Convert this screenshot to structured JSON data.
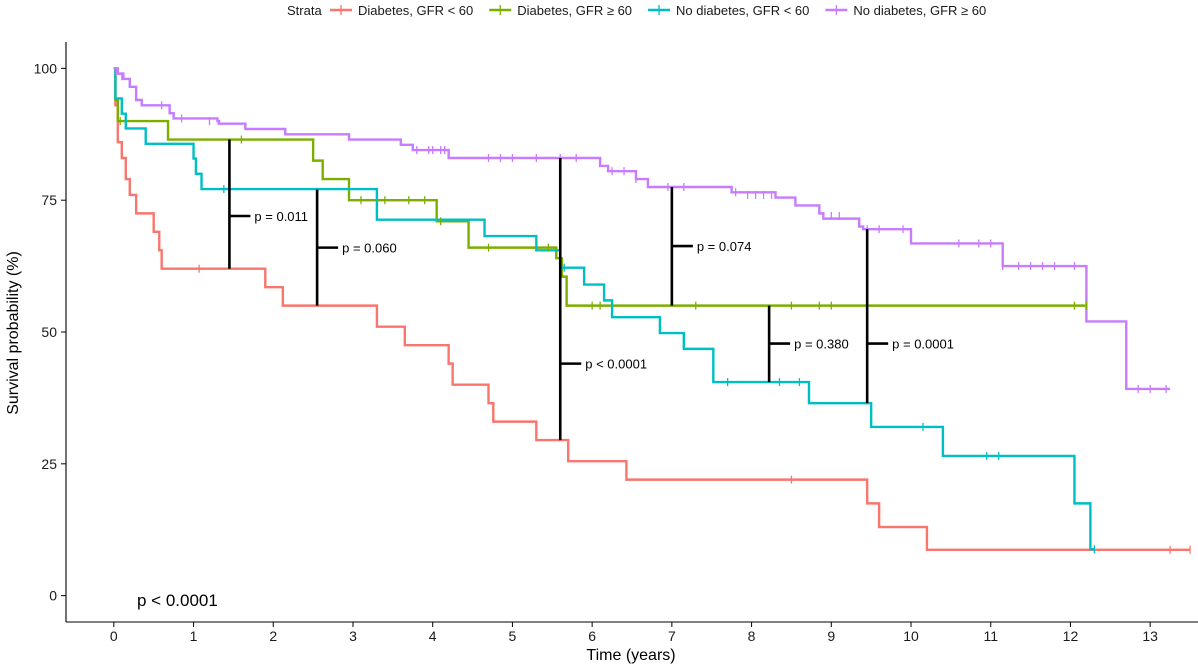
{
  "chart_data": {
    "type": "line",
    "step": true,
    "legend": {
      "title": "Strata",
      "position": "top"
    },
    "xlabel": "Time (years)",
    "ylabel": "Survival probability (%)",
    "xlim": [
      -0.6,
      13.6
    ],
    "ylim": [
      -5,
      105
    ],
    "x_ticks": [
      0,
      1,
      2,
      3,
      4,
      5,
      6,
      7,
      8,
      9,
      10,
      11,
      12,
      13
    ],
    "y_ticks": [
      0,
      25,
      50,
      75,
      100
    ],
    "grid": false,
    "overall_p": "p < 0.0001",
    "series": [
      {
        "name": "Diabetes, GFR < 60",
        "color": "#F8766D",
        "steps": [
          [
            0,
            100
          ],
          [
            0.02,
            93
          ],
          [
            0.05,
            86
          ],
          [
            0.1,
            83
          ],
          [
            0.15,
            79
          ],
          [
            0.2,
            76
          ],
          [
            0.28,
            72.5
          ],
          [
            0.5,
            69
          ],
          [
            0.57,
            65.5
          ],
          [
            0.6,
            62
          ],
          [
            1.9,
            58.5
          ],
          [
            2.12,
            55
          ],
          [
            3.3,
            51
          ],
          [
            3.65,
            47.5
          ],
          [
            4.2,
            44
          ],
          [
            4.25,
            40
          ],
          [
            4.7,
            36.5
          ],
          [
            4.76,
            33
          ],
          [
            5.3,
            29.5
          ],
          [
            5.7,
            25.5
          ],
          [
            6.43,
            22
          ],
          [
            9.45,
            17.5
          ],
          [
            9.6,
            13
          ],
          [
            10.2,
            8.7
          ],
          [
            13.5,
            8.7
          ]
        ],
        "censors": [
          [
            1.07,
            62
          ],
          [
            8.5,
            22
          ],
          [
            13.25,
            8.7
          ],
          [
            13.5,
            8.7
          ]
        ]
      },
      {
        "name": "Diabetes, GFR ≥ 60",
        "color": "#7CAE00",
        "steps": [
          [
            0,
            100
          ],
          [
            0.02,
            94
          ],
          [
            0.05,
            90
          ],
          [
            0.68,
            86.5
          ],
          [
            2.5,
            82.5
          ],
          [
            2.62,
            79
          ],
          [
            2.95,
            75
          ],
          [
            4.05,
            71
          ],
          [
            4.45,
            66
          ],
          [
            5.55,
            64
          ],
          [
            5.62,
            60.5
          ],
          [
            5.68,
            55
          ],
          [
            12.2,
            55
          ]
        ],
        "censors": [
          [
            0.08,
            90
          ],
          [
            1.6,
            86.5
          ],
          [
            3.1,
            75
          ],
          [
            3.4,
            75
          ],
          [
            3.7,
            75
          ],
          [
            3.9,
            75
          ],
          [
            4.1,
            71
          ],
          [
            4.7,
            66
          ],
          [
            5.45,
            66
          ],
          [
            6.0,
            55
          ],
          [
            6.1,
            55
          ],
          [
            7.3,
            55
          ],
          [
            8.5,
            55
          ],
          [
            8.85,
            55
          ],
          [
            9.0,
            55
          ],
          [
            12.05,
            55
          ],
          [
            12.2,
            55
          ]
        ]
      },
      {
        "name": "No diabetes, GFR < 60",
        "color": "#00BFC4",
        "steps": [
          [
            0,
            100
          ],
          [
            0.02,
            94.3
          ],
          [
            0.1,
            91.4
          ],
          [
            0.15,
            88.6
          ],
          [
            0.4,
            85.7
          ],
          [
            1.0,
            82.9
          ],
          [
            1.03,
            80
          ],
          [
            1.1,
            77.1
          ],
          [
            3.3,
            71.3
          ],
          [
            4.65,
            68.2
          ],
          [
            5.3,
            65.5
          ],
          [
            5.6,
            62.2
          ],
          [
            5.9,
            59
          ],
          [
            6.15,
            56
          ],
          [
            6.25,
            52.8
          ],
          [
            6.85,
            49.8
          ],
          [
            7.15,
            46.8
          ],
          [
            7.52,
            40.5
          ],
          [
            8.72,
            36.5
          ],
          [
            9.5,
            32
          ],
          [
            10.4,
            26.5
          ],
          [
            12.05,
            17.5
          ],
          [
            12.25,
            8.8
          ],
          [
            12.3,
            8.8
          ]
        ],
        "censors": [
          [
            1.38,
            77.1
          ],
          [
            5.65,
            62.2
          ],
          [
            7.7,
            40.5
          ],
          [
            8.35,
            40.5
          ],
          [
            8.6,
            40.5
          ],
          [
            10.15,
            32
          ],
          [
            10.95,
            26.5
          ],
          [
            11.1,
            26.5
          ],
          [
            12.3,
            8.8
          ]
        ]
      },
      {
        "name": "No diabetes, GFR ≥ 60",
        "color": "#C77CFF",
        "steps": [
          [
            0,
            100
          ],
          [
            0.05,
            99
          ],
          [
            0.12,
            98
          ],
          [
            0.2,
            96.5
          ],
          [
            0.28,
            94
          ],
          [
            0.35,
            93
          ],
          [
            0.7,
            91.5
          ],
          [
            0.75,
            90.5
          ],
          [
            1.3,
            90
          ],
          [
            1.32,
            89.5
          ],
          [
            1.3,
            89.5
          ],
          [
            1.65,
            88.5
          ],
          [
            2.15,
            87.5
          ],
          [
            2.95,
            86.5
          ],
          [
            3.6,
            85.5
          ],
          [
            3.75,
            84.5
          ],
          [
            4.2,
            83
          ],
          [
            6.1,
            81.5
          ],
          [
            6.2,
            80.5
          ],
          [
            6.55,
            79
          ],
          [
            6.7,
            77.5
          ],
          [
            7.75,
            76.5
          ],
          [
            8.3,
            75.5
          ],
          [
            8.55,
            74
          ],
          [
            8.85,
            72.5
          ],
          [
            8.9,
            71.5
          ],
          [
            9.35,
            70
          ],
          [
            9.4,
            69.5
          ],
          [
            10.0,
            66.8
          ],
          [
            11.15,
            62.5
          ],
          [
            12.2,
            52
          ],
          [
            12.7,
            39.2
          ],
          [
            13.25,
            39.2
          ]
        ],
        "censors": [
          [
            0.03,
            99.5
          ],
          [
            0.1,
            98.5
          ],
          [
            0.6,
            93
          ],
          [
            0.85,
            90.5
          ],
          [
            1.2,
            90
          ],
          [
            3.8,
            84.5
          ],
          [
            3.95,
            84.5
          ],
          [
            4.0,
            84.5
          ],
          [
            4.1,
            84.5
          ],
          [
            4.15,
            84.5
          ],
          [
            4.7,
            83
          ],
          [
            4.85,
            83
          ],
          [
            5.0,
            83
          ],
          [
            5.3,
            83
          ],
          [
            5.6,
            83
          ],
          [
            5.8,
            83
          ],
          [
            6.25,
            80.5
          ],
          [
            6.4,
            80.5
          ],
          [
            6.55,
            79
          ],
          [
            6.95,
            77.5
          ],
          [
            7.15,
            77.5
          ],
          [
            7.8,
            76.5
          ],
          [
            7.95,
            76
          ],
          [
            8.05,
            76
          ],
          [
            8.15,
            76
          ],
          [
            8.25,
            76
          ],
          [
            9.0,
            72
          ],
          [
            9.1,
            72
          ],
          [
            9.45,
            69.5
          ],
          [
            9.6,
            69.5
          ],
          [
            9.9,
            69.5
          ],
          [
            10.6,
            66.8
          ],
          [
            10.85,
            66.8
          ],
          [
            11.0,
            66.8
          ],
          [
            11.15,
            62.5
          ],
          [
            11.35,
            62.5
          ],
          [
            11.5,
            62.5
          ],
          [
            11.65,
            62.5
          ],
          [
            11.8,
            62.5
          ],
          [
            12.05,
            62.5
          ],
          [
            12.85,
            39.2
          ],
          [
            13.0,
            39.2
          ],
          [
            13.2,
            39.2
          ]
        ]
      }
    ],
    "annotations": [
      {
        "label": "p = 0.011",
        "x": 1.45,
        "y_from": 86.5,
        "y_to": 62,
        "y_label": 72
      },
      {
        "label": "p = 0.060",
        "x": 2.55,
        "y_from": 77,
        "y_to": 55,
        "y_label": 66
      },
      {
        "label": "p < 0.0001",
        "x": 5.6,
        "y_from": 83,
        "y_to": 29.5,
        "y_label": 44
      },
      {
        "label": "p = 0.074",
        "x": 7.0,
        "y_from": 77.5,
        "y_to": 55,
        "y_label": 66.3
      },
      {
        "label": "p = 0.380",
        "x": 8.22,
        "y_from": 55,
        "y_to": 40.5,
        "y_label": 47.8
      },
      {
        "label": "p = 0.0001",
        "x": 9.45,
        "y_from": 69.5,
        "y_to": 36.5,
        "y_label": 47.8
      }
    ]
  }
}
